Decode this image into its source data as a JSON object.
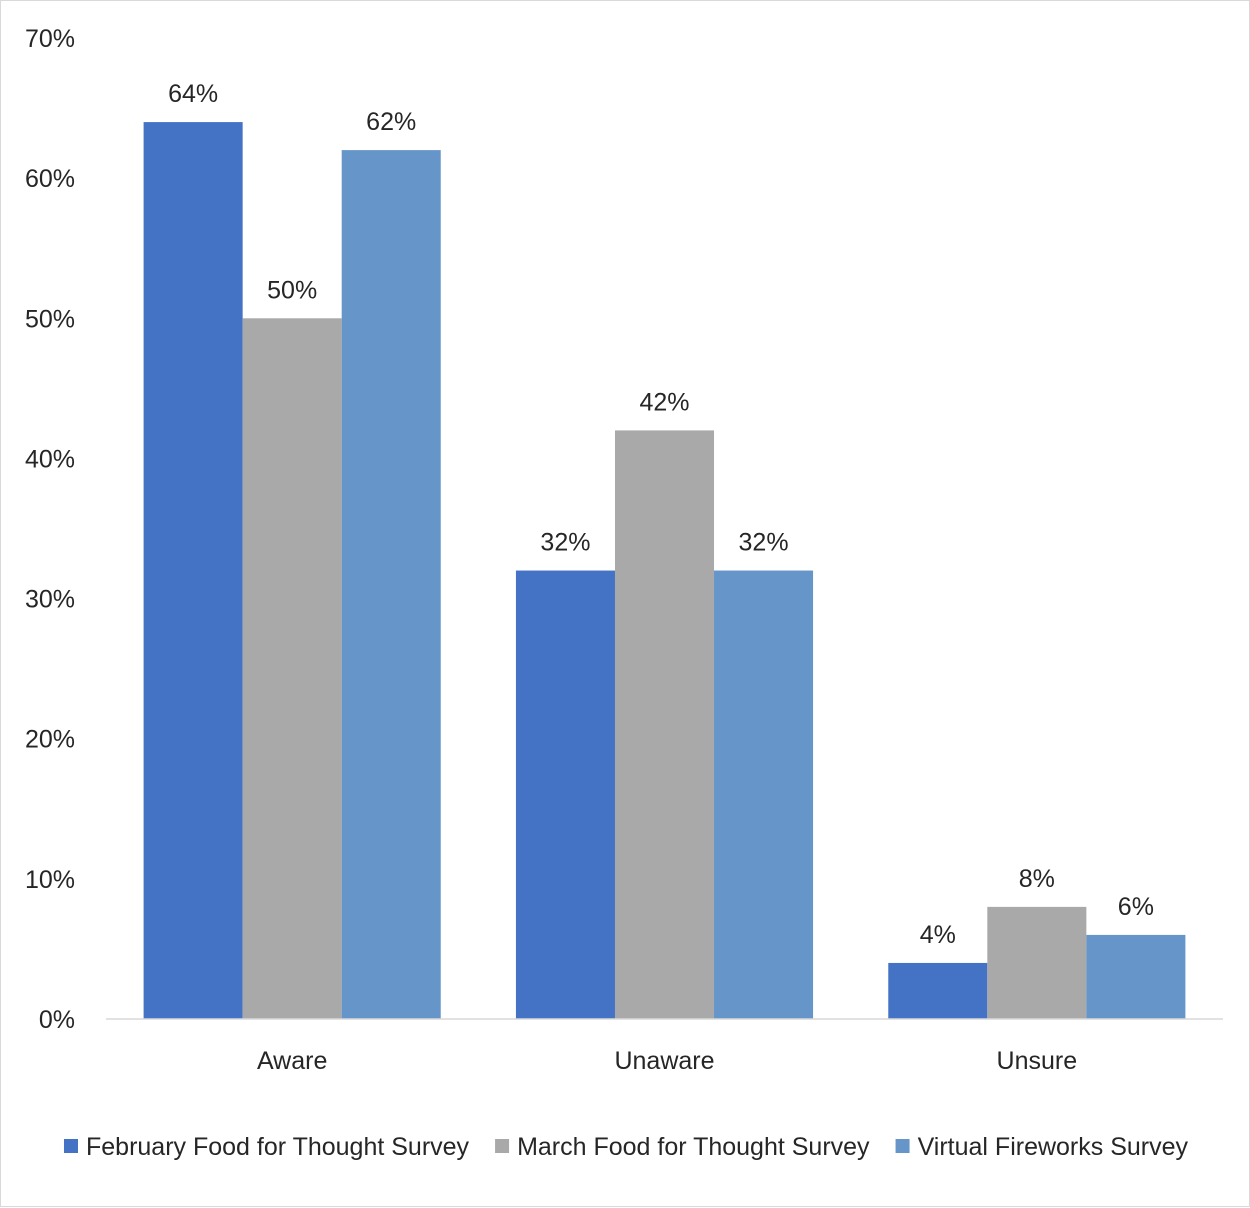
{
  "chart_data": {
    "type": "bar",
    "title": "",
    "xlabel": "",
    "ylabel": "",
    "categories": [
      "Aware",
      "Unaware",
      "Unsure"
    ],
    "series": [
      {
        "name": "February Food for Thought Survey",
        "values": [
          64,
          32,
          4
        ],
        "labels": [
          "64%",
          "32%",
          "4%"
        ],
        "color": "#4472c4"
      },
      {
        "name": "March Food for Thought Survey",
        "values": [
          50,
          42,
          8
        ],
        "labels": [
          "50%",
          "42%",
          "8%"
        ],
        "color": "#a9a9a9"
      },
      {
        "name": "Virtual Fireworks Survey",
        "values": [
          62,
          32,
          6
        ],
        "labels": [
          "62%",
          "32%",
          "6%"
        ],
        "color": "#6595c9"
      }
    ],
    "ylim": [
      0,
      70
    ],
    "yticks": [
      0,
      10,
      20,
      30,
      40,
      50,
      60,
      70
    ],
    "ytick_labels": [
      "0%",
      "10%",
      "20%",
      "30%",
      "40%",
      "50%",
      "60%",
      "70%"
    ],
    "grid": false,
    "legend_position": "bottom"
  }
}
